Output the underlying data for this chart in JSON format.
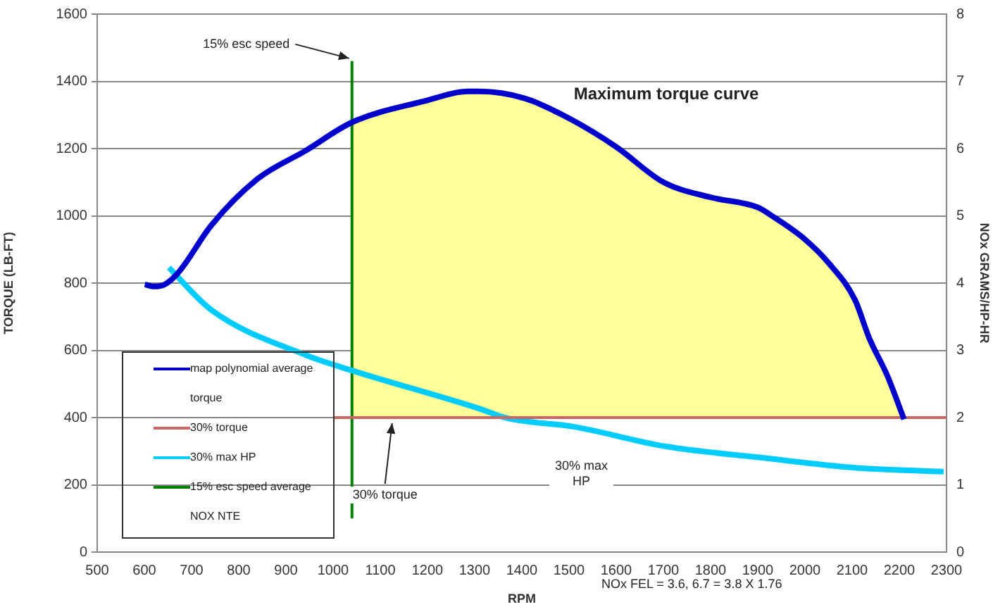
{
  "chart_data": {
    "type": "line",
    "xlabel": "RPM",
    "ylabel": "TORQUE (LB-FT)",
    "y2label": "NOx GRAMS/HP-HR",
    "xlim": [
      500,
      2300
    ],
    "xticks": [
      500,
      600,
      700,
      800,
      900,
      1000,
      1100,
      1200,
      1300,
      1400,
      1500,
      1600,
      1700,
      1800,
      1900,
      2000,
      2100,
      2200,
      2300
    ],
    "ylim": [
      0,
      1600
    ],
    "yticks": [
      0,
      200,
      400,
      600,
      800,
      1000,
      1200,
      1400,
      1600
    ],
    "y2lim": [
      0,
      8
    ],
    "y2ticks": [
      0,
      1,
      2,
      3,
      4,
      5,
      6,
      7,
      8
    ],
    "grid": "y",
    "legend": "bottom left",
    "series": [
      {
        "name": "map polynomial average torque",
        "color": "#0000cc",
        "x": [
          601,
          620,
          643,
          673,
          742,
          840,
          942,
          1040,
          1190,
          1288,
          1309,
          1407,
          1500,
          1600,
          1700,
          1800,
          1900,
          1930,
          2000,
          2050,
          2106,
          2136,
          2175,
          2210
        ],
        "values": [
          796,
          790,
          796,
          833,
          972,
          1110,
          1194,
          1278,
          1340,
          1370,
          1370,
          1349,
          1290,
          1205,
          1100,
          1055,
          1025,
          1000,
          930,
          860,
          750,
          637,
          523,
          395
        ]
      },
      {
        "type": "area",
        "color": "#ffff99",
        "x": [
          1040,
          1190,
          1288,
          1309,
          1407,
          1500,
          1600,
          1700,
          1800,
          1900,
          1930,
          2000,
          2050,
          2106,
          2136,
          2175,
          2210
        ],
        "values": [
          1278,
          1340,
          1370,
          1370,
          1349,
          1290,
          1205,
          1100,
          1055,
          1025,
          1000,
          930,
          860,
          750,
          637,
          523,
          395
        ]
      },
      {
        "name": "30% torque",
        "color": "#cc6666",
        "x": [
          1000,
          2300
        ],
        "values": [
          400,
          400
        ]
      },
      {
        "name": "30% max HP",
        "color": "#00ccff",
        "x": [
          652,
          742,
          942,
          1040,
          1309,
          1369,
          1509,
          1706,
          1906,
          2106,
          2294
        ],
        "values": [
          846,
          720,
          586,
          540,
          427,
          398,
          373,
          314,
          281,
          251,
          239
        ]
      },
      {
        "name": "15% esc speed average NOX NTE",
        "color": "#008000",
        "x": [
          1040,
          1040
        ],
        "values": [
          100,
          1460
        ]
      }
    ],
    "annotations": [
      {
        "text": "15% esc speed",
        "x": 1040,
        "y": 1460
      },
      "Maximum torque curve",
      {
        "text": "30% torque",
        "x": 1125,
        "y": 400
      },
      "30% max HP",
      "NOx FEL = 3.6, 6.7 = 3.8 X 1.76"
    ]
  }
}
